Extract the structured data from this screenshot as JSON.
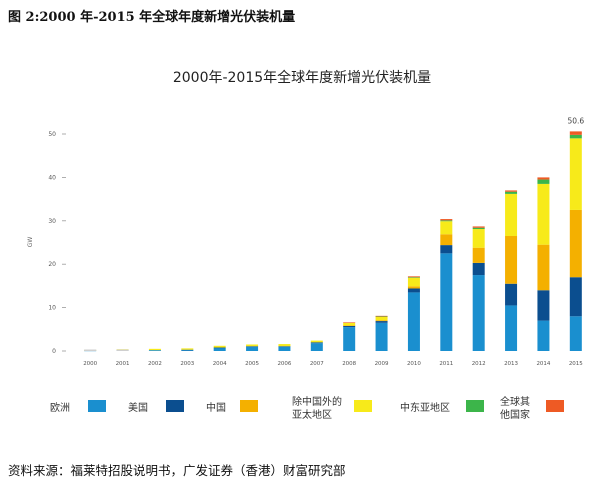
{
  "figure_label": "图 2:2000 年-2015 年全球年度新增光伏装机量",
  "source": "资料来源：福莱特招股说明书，广发证券（香港）财富研究部",
  "colors": {
    "europe": "#1a8fcf",
    "usa": "#0b4e8f",
    "china": "#f4b000",
    "apac": "#f7ea1a",
    "mea": "#3cb54a",
    "row": "#ee5a24",
    "axis": "#9a9a9a",
    "text": "#555555"
  },
  "chart_data": {
    "type": "bar",
    "stacked": true,
    "title": "2000年-2015年全球年度新增光伏装机量",
    "ylabel": "GW",
    "ylim": [
      0,
      50
    ],
    "yticks": [
      "0",
      "10",
      "20",
      "30",
      "40",
      "50"
    ],
    "categories": [
      "2000",
      "2001",
      "2002",
      "2003",
      "2004",
      "2005",
      "2006",
      "2007",
      "2008",
      "2009",
      "2010",
      "2011",
      "2012",
      "2013",
      "2014",
      "2015"
    ],
    "series": [
      {
        "name": "欧洲",
        "key": "europe",
        "values": [
          0.1,
          0.2,
          0.2,
          0.2,
          0.7,
          1.0,
          1.0,
          1.8,
          5.5,
          6.5,
          13.5,
          22.5,
          17.5,
          10.5,
          7.0,
          8.0
        ]
      },
      {
        "name": "美国",
        "key": "usa",
        "values": [
          0.0,
          0.0,
          0.0,
          0.1,
          0.1,
          0.1,
          0.1,
          0.2,
          0.3,
          0.4,
          0.9,
          1.9,
          2.8,
          5.0,
          7.0,
          9.0
        ]
      },
      {
        "name": "中国",
        "key": "china",
        "values": [
          0.0,
          0.0,
          0.0,
          0.0,
          0.0,
          0.0,
          0.0,
          0.0,
          0.1,
          0.2,
          0.5,
          2.5,
          3.5,
          11.0,
          10.5,
          15.5
        ]
      },
      {
        "name": "除中国外的亚太地区",
        "key": "apac",
        "values": [
          0.2,
          0.2,
          0.3,
          0.3,
          0.4,
          0.4,
          0.5,
          0.4,
          0.6,
          0.8,
          2.0,
          3.0,
          4.3,
          9.7,
          14.0,
          16.5
        ]
      },
      {
        "name": "中东亚地区",
        "key": "mea",
        "values": [
          0.0,
          0.0,
          0.0,
          0.0,
          0.0,
          0.0,
          0.0,
          0.0,
          0.0,
          0.1,
          0.1,
          0.2,
          0.3,
          0.5,
          1.0,
          0.8
        ]
      },
      {
        "name": "全球其他国家",
        "key": "row",
        "values": [
          0.0,
          0.0,
          0.0,
          0.0,
          0.0,
          0.0,
          0.0,
          0.0,
          0.1,
          0.1,
          0.2,
          0.3,
          0.3,
          0.3,
          0.5,
          0.8
        ]
      }
    ],
    "annotations": [
      {
        "category": "2015",
        "text": "50.6"
      }
    ],
    "legend": {
      "placement": "bottom"
    },
    "grid": false
  }
}
